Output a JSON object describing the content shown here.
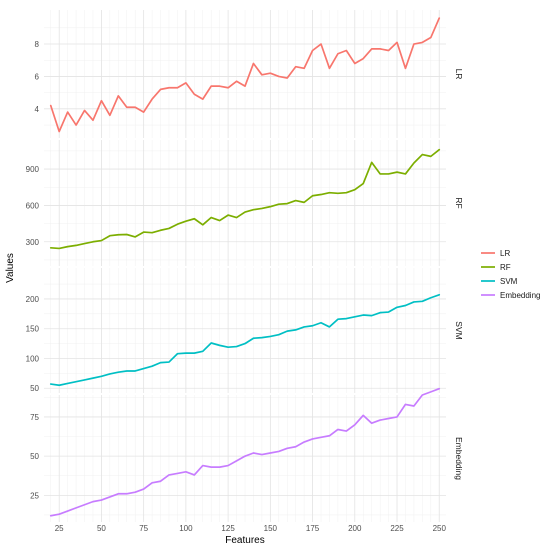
{
  "chart_data": {
    "type": "line",
    "layout": "faceted-vertical",
    "xlabel": "Features",
    "ylabel": "Values",
    "grid": true,
    "legend_position": "right",
    "x": [
      20,
      25,
      30,
      35,
      40,
      45,
      50,
      55,
      60,
      65,
      70,
      75,
      80,
      85,
      90,
      95,
      100,
      105,
      110,
      115,
      120,
      125,
      130,
      135,
      140,
      145,
      150,
      155,
      160,
      165,
      170,
      175,
      180,
      185,
      190,
      195,
      200,
      205,
      210,
      215,
      220,
      225,
      230,
      235,
      240,
      245,
      250
    ],
    "x_ticks": [
      25,
      50,
      75,
      100,
      125,
      150,
      175,
      200,
      225,
      250
    ],
    "xlim": [
      16,
      254
    ],
    "series": [
      {
        "name": "LR",
        "color": "#F8766D",
        "panel_label": "LR",
        "ylim": [
          2.2,
          10.1
        ],
        "y_ticks": [
          4,
          6,
          8
        ],
        "values": [
          4.2,
          2.6,
          3.8,
          3.0,
          3.9,
          3.3,
          4.5,
          3.6,
          4.8,
          4.1,
          4.1,
          3.8,
          4.6,
          5.2,
          5.3,
          5.3,
          5.6,
          4.9,
          4.6,
          5.4,
          5.4,
          5.3,
          5.7,
          5.4,
          6.8,
          6.1,
          6.2,
          6.0,
          5.9,
          6.6,
          6.5,
          7.6,
          8.0,
          6.5,
          7.4,
          7.6,
          6.8,
          7.1,
          7.7,
          7.7,
          7.6,
          8.1,
          6.5,
          8.0,
          8.1,
          8.4,
          9.6
        ]
      },
      {
        "name": "RF",
        "color": "#7CAE00",
        "panel_label": "RF",
        "ylim": [
          100,
          1140
        ],
        "y_ticks": [
          300,
          600,
          900
        ],
        "values": [
          250,
          245,
          260,
          270,
          285,
          300,
          310,
          350,
          358,
          360,
          340,
          380,
          375,
          395,
          410,
          445,
          470,
          490,
          440,
          500,
          475,
          520,
          500,
          545,
          565,
          575,
          590,
          610,
          615,
          640,
          625,
          680,
          690,
          705,
          700,
          705,
          730,
          780,
          955,
          860,
          860,
          875,
          860,
          950,
          1020,
          1005,
          1060
        ]
      },
      {
        "name": "SVM",
        "color": "#00BFC4",
        "panel_label": "SVM",
        "ylim": [
          42,
          252
        ],
        "y_ticks": [
          50,
          100,
          150,
          200
        ],
        "values": [
          57,
          55,
          58,
          61,
          64,
          67,
          70,
          74,
          77,
          79,
          79,
          83,
          87,
          93,
          94,
          108,
          109,
          109,
          112,
          126,
          122,
          119,
          120,
          125,
          134,
          135,
          137,
          140,
          146,
          148,
          153,
          155,
          160,
          153,
          166,
          167,
          170,
          173,
          172,
          177,
          178,
          186,
          189,
          195,
          196,
          202,
          207
        ]
      },
      {
        "name": "Embedding",
        "color": "#C77CFF",
        "panel_label": "Embedding",
        "ylim": [
          8,
          89
        ],
        "y_ticks": [
          25,
          50,
          75
        ],
        "values": [
          12,
          13,
          15,
          17,
          19,
          21,
          22,
          24,
          26,
          26,
          27,
          29,
          33,
          34,
          38,
          39,
          40,
          38,
          44,
          43,
          43,
          44,
          47,
          50,
          52,
          51,
          52,
          53,
          55,
          56,
          59,
          61,
          62,
          63,
          67,
          66,
          70,
          76,
          71,
          73,
          74,
          75,
          83,
          82,
          89,
          91,
          93
        ]
      }
    ]
  }
}
